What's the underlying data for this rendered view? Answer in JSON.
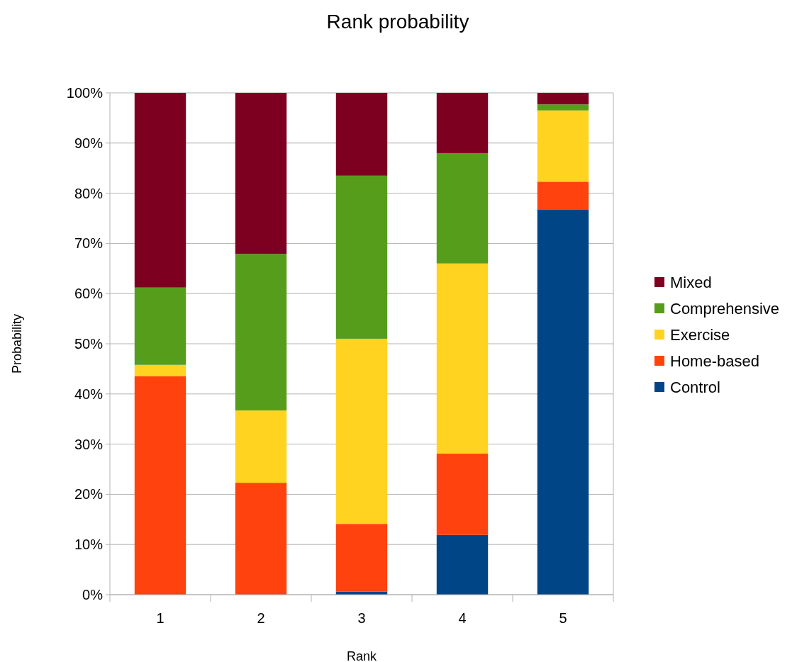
{
  "chart_data": {
    "type": "bar",
    "title": "Rank probability",
    "xlabel": "Rank",
    "ylabel": "Probability",
    "categories": [
      "1",
      "2",
      "3",
      "4",
      "5"
    ],
    "stacked": true,
    "legend": "right",
    "grid": "y",
    "ylim": [
      0,
      100
    ],
    "yticks": [
      {
        "value": 0,
        "label": "0%"
      },
      {
        "value": 10,
        "label": "10%"
      },
      {
        "value": 20,
        "label": "20%"
      },
      {
        "value": 30,
        "label": "30%"
      },
      {
        "value": 40,
        "label": "40%"
      },
      {
        "value": 50,
        "label": "50%"
      },
      {
        "value": 60,
        "label": "60%"
      },
      {
        "value": 70,
        "label": "70%"
      },
      {
        "value": 80,
        "label": "80%"
      },
      {
        "value": 90,
        "label": "90%"
      },
      {
        "value": 100,
        "label": "100%"
      }
    ],
    "series": [
      {
        "name": "Control",
        "color": "#004586",
        "values": [
          0,
          0,
          0.6,
          11.9,
          76.7
        ]
      },
      {
        "name": "Home-based",
        "color": "#ff420e",
        "values": [
          43.5,
          22.3,
          13.5,
          16.2,
          5.6
        ]
      },
      {
        "name": "Exercise",
        "color": "#ffd320",
        "values": [
          2.3,
          14.4,
          36.9,
          37.9,
          14.2
        ]
      },
      {
        "name": "Comprehensive",
        "color": "#579d1c",
        "values": [
          15.4,
          31.2,
          32.5,
          22.0,
          1.2
        ]
      },
      {
        "name": "Mixed",
        "color": "#7e0021",
        "values": [
          38.8,
          32.1,
          16.5,
          12.0,
          2.3
        ]
      }
    ]
  }
}
